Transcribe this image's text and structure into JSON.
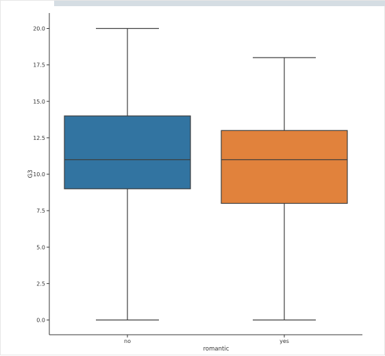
{
  "chart_data": {
    "type": "box",
    "xlabel": "romantic",
    "ylabel": "G3",
    "ylim": [
      -1,
      21
    ],
    "yticks": [
      0.0,
      2.5,
      5.0,
      7.5,
      10.0,
      12.5,
      15.0,
      17.5,
      20.0
    ],
    "ytick_labels": [
      "0.0",
      "2.5",
      "5.0",
      "7.5",
      "10.0",
      "12.5",
      "15.0",
      "17.5",
      "20.0"
    ],
    "categories": [
      "no",
      "yes"
    ],
    "boxes": [
      {
        "category": "no",
        "whisker_low": 0,
        "q1": 9,
        "median": 11,
        "q3": 14,
        "whisker_high": 20,
        "color": "#3274a1"
      },
      {
        "category": "yes",
        "whisker_low": 0,
        "q1": 8,
        "median": 11,
        "q3": 13,
        "whisker_high": 18,
        "color": "#e1823c"
      }
    ],
    "line_color": "#3d3d3d"
  }
}
